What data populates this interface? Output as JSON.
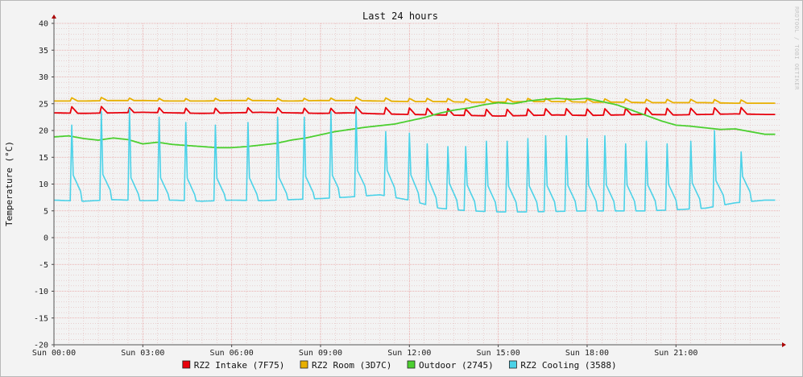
{
  "chart_data": {
    "type": "line",
    "title": "Last 24 hours",
    "ylabel": "Temperature (°C)",
    "watermark": "RRDTOOL / TOBI OETIKER",
    "ylim": [
      -20,
      40
    ],
    "y_ticks": [
      40,
      35,
      30,
      25,
      20,
      15,
      10,
      5,
      0,
      -5,
      -10,
      -15,
      -20
    ],
    "xlim_hours": [
      0,
      24.5
    ],
    "x_ticks": [
      {
        "hour": 0,
        "label": "Sun 00:00"
      },
      {
        "hour": 3,
        "label": "Sun 03:00"
      },
      {
        "hour": 6,
        "label": "Sun 06:00"
      },
      {
        "hour": 9,
        "label": "Sun 09:00"
      },
      {
        "hour": 12,
        "label": "Sun 12:00"
      },
      {
        "hour": 15,
        "label": "Sun 15:00"
      },
      {
        "hour": 18,
        "label": "Sun 18:00"
      },
      {
        "hour": 21,
        "label": "Sun 21:00"
      }
    ],
    "grid": true,
    "legend_position": "bottom",
    "series": [
      {
        "name": "RZ2 Intake (7F75)",
        "color": "#e8000b",
        "x": [
          0,
          1,
          2,
          3,
          4,
          5,
          6,
          7,
          8,
          9,
          10,
          11,
          12,
          13,
          14,
          15,
          16,
          17,
          18,
          19,
          20,
          21,
          22,
          23,
          24
        ],
        "y": [
          23.3,
          23.2,
          23.3,
          23.4,
          23.3,
          23.2,
          23.3,
          23.4,
          23.3,
          23.2,
          23.3,
          23.1,
          23.0,
          22.9,
          22.8,
          22.7,
          22.8,
          22.9,
          22.8,
          22.9,
          23.0,
          22.9,
          23.0,
          23.1,
          23.0
        ],
        "spikes": [
          0.6,
          1.6,
          2.5,
          3.5,
          4.4,
          5.4,
          6.5,
          7.5,
          8.4,
          9.3,
          10.2,
          11.2,
          12.0,
          12.6,
          13.3,
          13.9,
          14.6,
          15.3,
          16.0,
          16.6,
          17.3,
          18.0,
          18.6,
          19.3,
          20.0,
          20.7,
          21.5,
          22.3,
          23.2
        ],
        "spike_height": 1.2
      },
      {
        "name": "RZ2 Room (3D7C)",
        "color": "#e8b000",
        "x": [
          0,
          1,
          2,
          3,
          4,
          5,
          6,
          7,
          8,
          9,
          10,
          11,
          12,
          13,
          14,
          15,
          16,
          17,
          18,
          19,
          20,
          21,
          22,
          23,
          24
        ],
        "y": [
          25.5,
          25.5,
          25.6,
          25.6,
          25.5,
          25.5,
          25.6,
          25.6,
          25.5,
          25.6,
          25.6,
          25.5,
          25.4,
          25.4,
          25.3,
          25.3,
          25.4,
          25.4,
          25.3,
          25.3,
          25.2,
          25.2,
          25.2,
          25.1,
          25.1
        ],
        "spikes": [
          0.6,
          1.6,
          2.5,
          3.5,
          4.4,
          5.4,
          6.5,
          7.5,
          8.4,
          9.3,
          10.2,
          11.2,
          12.0,
          12.6,
          13.3,
          13.9,
          14.6,
          15.3,
          16.0,
          16.6,
          17.3,
          18.0,
          18.6,
          19.3,
          20.0,
          20.7,
          21.5,
          22.3,
          23.2
        ],
        "spike_height": 0.6
      },
      {
        "name": "Outdoor (2745)",
        "color": "#4ccf30",
        "x": [
          0,
          0.5,
          1,
          1.5,
          2,
          2.5,
          3,
          3.5,
          4,
          4.5,
          5,
          5.5,
          6,
          6.5,
          7,
          7.5,
          8,
          8.5,
          9,
          9.5,
          10,
          10.5,
          11,
          11.5,
          12,
          12.5,
          13,
          13.5,
          14,
          14.5,
          15,
          15.5,
          16,
          16.5,
          17,
          17.5,
          18,
          18.5,
          19,
          19.5,
          20,
          20.5,
          21,
          21.5,
          22,
          22.5,
          23,
          23.5,
          24
        ],
        "y": [
          18.8,
          19.0,
          18.5,
          18.2,
          18.6,
          18.3,
          17.5,
          17.8,
          17.4,
          17.2,
          17.0,
          16.8,
          16.8,
          17.0,
          17.3,
          17.6,
          18.2,
          18.6,
          19.2,
          19.8,
          20.2,
          20.6,
          20.9,
          21.2,
          21.8,
          22.4,
          23.2,
          23.8,
          24.2,
          24.8,
          25.2,
          25.0,
          25.5,
          25.8,
          26.0,
          25.8,
          26.0,
          25.4,
          24.8,
          23.8,
          22.8,
          21.8,
          21.0,
          20.8,
          20.5,
          20.2,
          20.3,
          19.8,
          19.3
        ],
        "spikes": [],
        "spike_height": 0
      },
      {
        "name": "RZ2 Cooling (3588)",
        "color": "#4bd2e8",
        "x": [
          0,
          1,
          2,
          3,
          4,
          5,
          6,
          7,
          8,
          9,
          10,
          11,
          12,
          13,
          14,
          15,
          16,
          17,
          18,
          19,
          20,
          21,
          22,
          23,
          24
        ],
        "y": [
          7.0,
          6.8,
          7.1,
          6.9,
          7.0,
          6.8,
          7.0,
          6.9,
          7.1,
          7.3,
          7.6,
          8.0,
          7.0,
          5.5,
          5.0,
          4.8,
          4.8,
          4.9,
          5.0,
          5.0,
          5.0,
          5.2,
          5.5,
          6.5,
          7.0
        ],
        "spikes": [
          0.6,
          1.6,
          2.5,
          3.5,
          4.4,
          5.4,
          6.5,
          7.5,
          8.4,
          9.3,
          10.2,
          11.2,
          12.0,
          12.6,
          13.3,
          13.9,
          14.6,
          15.3,
          16.0,
          16.6,
          17.3,
          18.0,
          18.6,
          19.3,
          20.0,
          20.7,
          21.5,
          22.3,
          23.2
        ],
        "spike_peaks": [
          21.0,
          23.5,
          24.0,
          22.5,
          21.5,
          21.0,
          21.5,
          22.5,
          22.5,
          23.5,
          24.0,
          19.8,
          19.5,
          17.5,
          17.0,
          17.0,
          18.0,
          18.0,
          18.5,
          19.0,
          19.0,
          18.5,
          19.0,
          17.5,
          18.0,
          17.5,
          18.0,
          20.0,
          16.0
        ]
      }
    ]
  }
}
